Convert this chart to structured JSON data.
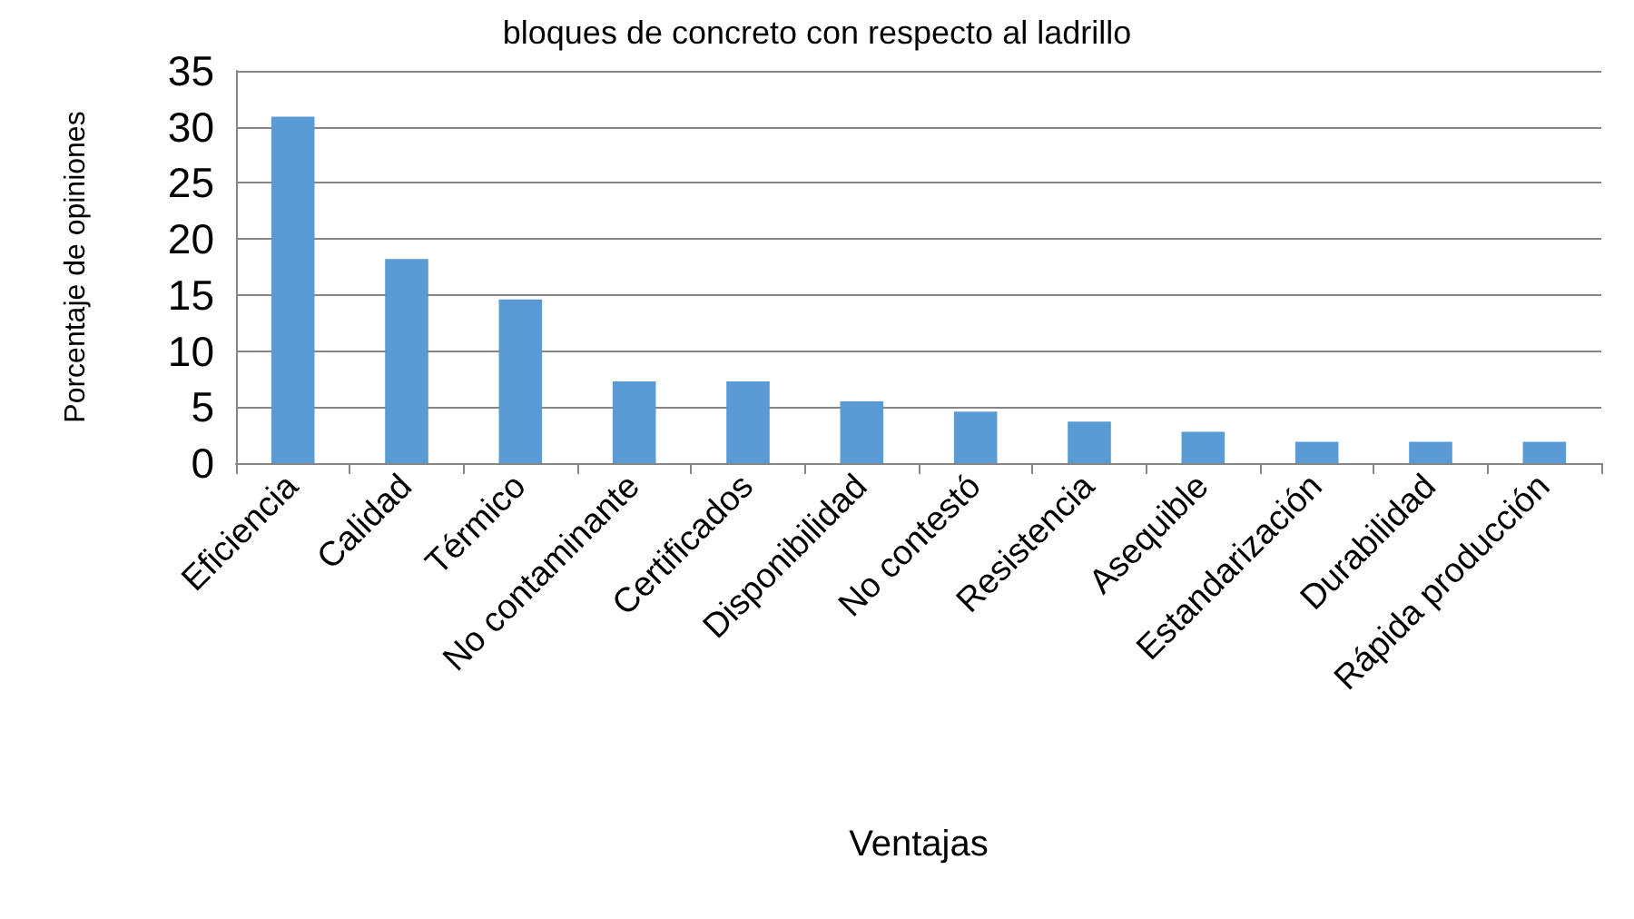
{
  "chart_data": {
    "type": "bar",
    "title": "bloques de concreto con respecto al ladrillo",
    "xlabel": "Ventajas",
    "ylabel": "Porcentaje de opiniones",
    "categories": [
      "Eficiencia",
      "Calidad",
      "Térmico",
      "No contaminante",
      "Certificados",
      "Disponibilidad",
      "No contestó",
      "Resistencia",
      "Asequible",
      "Estandarización",
      "Durabilidad",
      "Rápida producción"
    ],
    "values": [
      30.9,
      18.2,
      14.6,
      7.3,
      7.3,
      5.5,
      4.6,
      3.7,
      2.8,
      1.9,
      1.9,
      1.9
    ],
    "color": "#5b9bd5",
    "ylim": [
      0,
      35
    ],
    "yticks": [
      0,
      5,
      10,
      15,
      20,
      25,
      30,
      35
    ],
    "grid": "y"
  }
}
